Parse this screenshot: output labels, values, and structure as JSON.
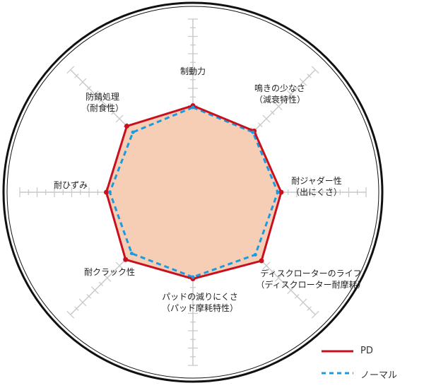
{
  "chart_data": {
    "type": "radar",
    "axes": [
      {
        "label": "制動力",
        "sub": ""
      },
      {
        "label": "鳴きの少なさ",
        "sub": "（減衰特性）"
      },
      {
        "label": "耐ジャダー性",
        "sub": "（出にくさ）"
      },
      {
        "label": "ディスクローターのライフ",
        "sub": "（ディスクローター耐摩耗）"
      },
      {
        "label": "パッドの減りにくさ",
        "sub": "（パッド摩耗特性）"
      },
      {
        "label": "耐クラック性",
        "sub": ""
      },
      {
        "label": "耐ひずみ",
        "sub": ""
      },
      {
        "label": "防錆処理",
        "sub": "（耐食性）"
      }
    ],
    "range": [
      0,
      1
    ],
    "grid": "axis spokes with tick marks",
    "legend_position": "bottom-right",
    "series": [
      {
        "name": "PD",
        "color": "#c8101e",
        "fill": "#f6cdb5",
        "style": "solid",
        "values": [
          0.5,
          0.5,
          0.51,
          0.56,
          0.5,
          0.55,
          0.5,
          0.54
        ]
      },
      {
        "name": "ノーマル",
        "color": "#1a9be0",
        "style": "dashed",
        "values": [
          0.49,
          0.49,
          0.49,
          0.51,
          0.49,
          0.5,
          0.48,
          0.49
        ]
      }
    ]
  }
}
